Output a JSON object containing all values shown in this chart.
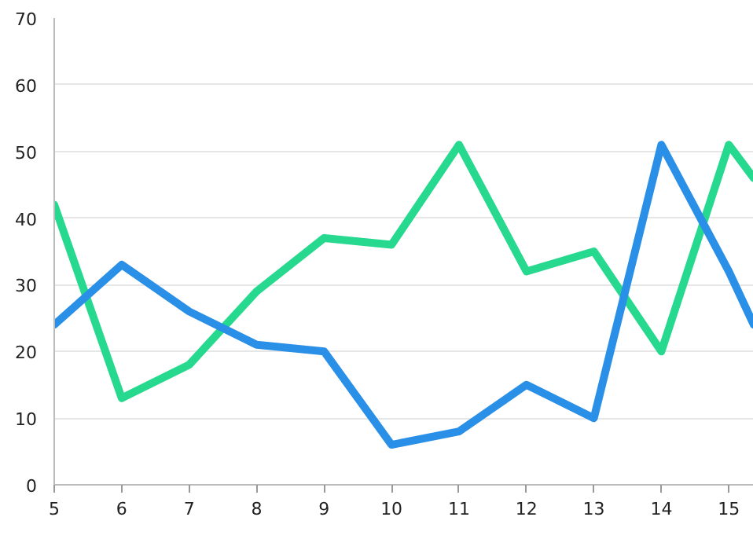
{
  "chart_data": {
    "type": "line",
    "xlim": [
      5,
      15.37
    ],
    "xticks": [
      5,
      6,
      7,
      8,
      9,
      10,
      11,
      12,
      13,
      14,
      15
    ],
    "ylim": [
      0,
      70
    ],
    "yticks": [
      0,
      10,
      20,
      30,
      40,
      50,
      60,
      70
    ],
    "grid": "y",
    "marker": "none",
    "line_style": "solid",
    "series": [
      {
        "color": "#27d98e",
        "x": [
          5,
          6,
          7,
          8,
          9,
          10,
          11,
          12,
          13,
          14,
          15,
          15.37
        ],
        "values": [
          42,
          13,
          18,
          29,
          37,
          36,
          51,
          32,
          35,
          20,
          51,
          46
        ]
      },
      {
        "color": "#2a8fe6",
        "x": [
          5,
          6,
          7,
          8,
          9,
          10,
          11,
          12,
          13,
          14,
          15,
          15.37
        ],
        "values": [
          24,
          33,
          26,
          21,
          20,
          6,
          8,
          15,
          10,
          51,
          32,
          24
        ]
      }
    ]
  }
}
